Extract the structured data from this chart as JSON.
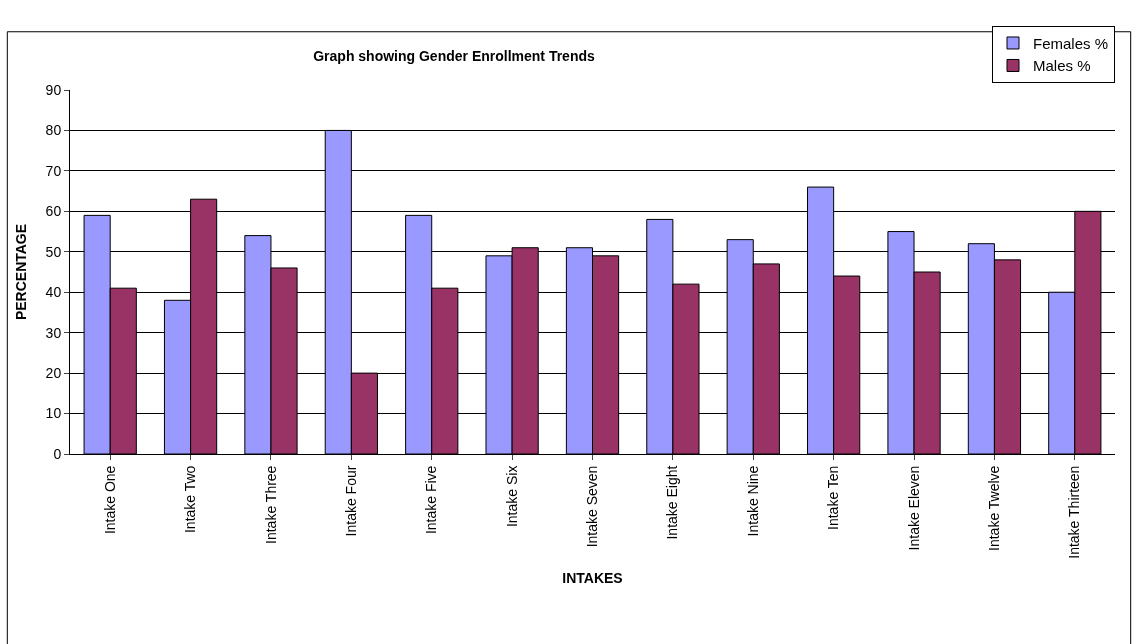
{
  "chart_data": {
    "type": "bar",
    "title": "Graph showing Gender Enrollment Trends",
    "xlabel": "INTAKES",
    "ylabel": "PERCENTAGE",
    "categories": [
      "Intake One",
      "Intake Two",
      "Intake Three",
      "Intake Four",
      "Intake Five",
      "Intake Six",
      "Intake Seven",
      "Intake Eight",
      "Intake Nine",
      "Intake Ten",
      "Intake Eleven",
      "Intake Twelve",
      "Intake Thirteen"
    ],
    "series": [
      {
        "name": "Females %",
        "color": "#9999ff",
        "values": [
          59,
          38,
          54,
          80,
          59,
          49,
          51,
          58,
          53,
          66,
          55,
          52,
          40
        ]
      },
      {
        "name": "Males %",
        "color": "#993366",
        "values": [
          41,
          63,
          46,
          20,
          41,
          51,
          49,
          42,
          47,
          44,
          45,
          48,
          60
        ]
      }
    ],
    "ylim": [
      0,
      90
    ],
    "yticks": [
      0,
      10,
      20,
      30,
      40,
      50,
      60,
      70,
      80,
      90
    ],
    "grid": "y",
    "legend": "top right"
  }
}
